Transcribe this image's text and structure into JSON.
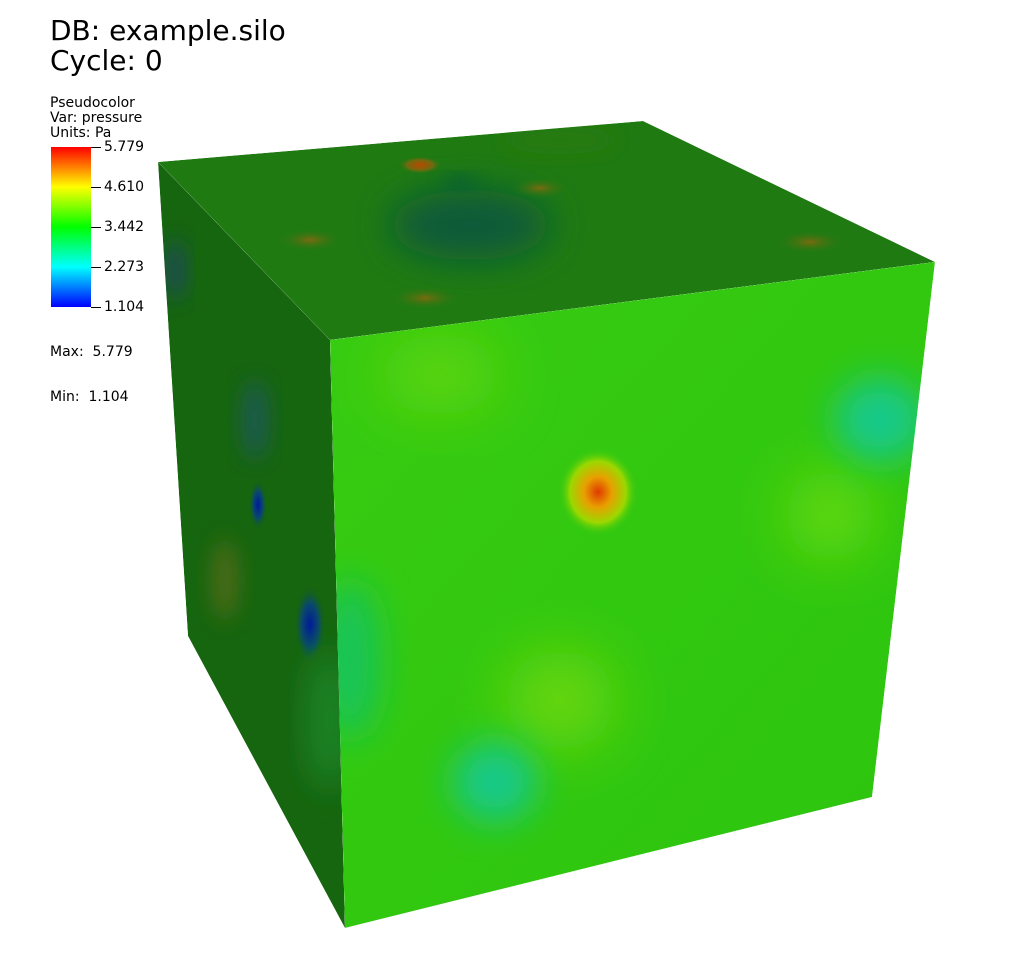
{
  "header": {
    "db_label": "DB: example.silo",
    "cycle_label": "Cycle: 0"
  },
  "legend": {
    "plot_type": "Pseudocolor",
    "var_label": "Var: pressure",
    "units_label": "Units: Pa",
    "ticks": [
      "5.779",
      "4.610",
      "3.442",
      "2.273",
      "1.104"
    ],
    "max_label": "Max:  5.779",
    "min_label": "Min:  1.104",
    "colors": [
      "#ff0000",
      "#ffff00",
      "#00ff00",
      "#00ffff",
      "#0000ff"
    ]
  },
  "scene": {
    "object": "cube",
    "colors": {
      "top_face": "#1f7a12",
      "left_face": "#16650f",
      "front_face": "#2fc80f"
    }
  }
}
